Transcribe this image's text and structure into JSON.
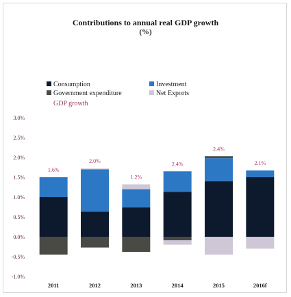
{
  "title": "Contributions to annual real GDP growth",
  "subtitle": "(%)",
  "legend": {
    "consumption": "Consumption",
    "investment": "Investment",
    "government": "Government expenditure",
    "net_exports": "Net Exports",
    "gdp_growth": "GDP growth"
  },
  "colors": {
    "consumption": "#0d1a2e",
    "investment": "#2d78c4",
    "government": "#4a4a45",
    "net_exports": "#cfc6d6",
    "gdp_label": "#a8386a",
    "axis_text": "#5a2a3a"
  },
  "chart_data": {
    "type": "bar",
    "stacked": true,
    "title": "Contributions to annual real GDP growth",
    "subtitle": "(%)",
    "categories": [
      "2011",
      "2012",
      "2013",
      "2014",
      "2015",
      "2016f"
    ],
    "ylim": [
      -1.0,
      3.0
    ],
    "yticks": [
      -1.0,
      -0.5,
      0.0,
      0.5,
      1.0,
      1.5,
      2.0,
      2.5,
      3.0
    ],
    "ytick_labels": [
      "-1.0%",
      "-0.5%",
      "0.0%",
      "0.5%",
      "1.0%",
      "1.5%",
      "2.0%",
      "2.5%",
      "3.0%"
    ],
    "series": [
      {
        "name": "Consumption",
        "key": "consumption",
        "values": [
          1.0,
          0.63,
          0.74,
          1.13,
          1.4,
          1.5
        ]
      },
      {
        "name": "Investment",
        "key": "investment",
        "values": [
          0.5,
          1.07,
          0.46,
          0.52,
          0.58,
          0.17
        ]
      },
      {
        "name": "Government expenditure",
        "key": "government",
        "values": [
          -0.45,
          -0.27,
          -0.38,
          -0.09,
          0.05,
          0.0
        ]
      },
      {
        "name": "Net Exports",
        "key": "net_exports",
        "values": [
          0.0,
          0.02,
          0.12,
          -0.11,
          -0.45,
          -0.3
        ]
      }
    ],
    "gdp_growth": {
      "name": "GDP growth",
      "labels": [
        "1.6%",
        "2.0%",
        "1.2%",
        "2.4%",
        "2.4%",
        "2.1%"
      ]
    }
  },
  "x_labels": [
    "2011",
    "2012",
    "2013",
    "2014",
    "2015",
    "2016f"
  ]
}
